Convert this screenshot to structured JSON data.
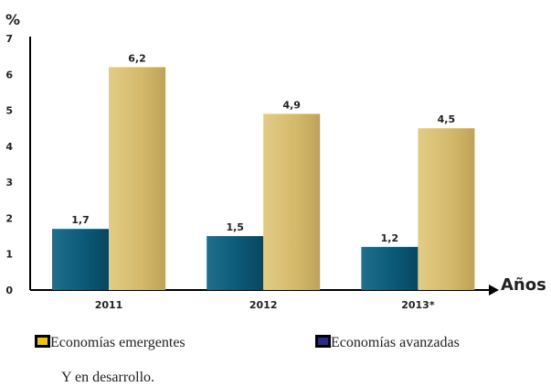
{
  "chart_data": {
    "type": "bar",
    "categories": [
      "2011",
      "2012",
      "2013*"
    ],
    "series": [
      {
        "name": "Economías avanzadas",
        "values": [
          1.7,
          1.5,
          1.2
        ],
        "labels": [
          "1,7",
          "1,5",
          "1,2"
        ]
      },
      {
        "name": "Economías emergentes Y en desarrollo.",
        "values": [
          6.2,
          4.9,
          4.5
        ],
        "labels": [
          "6,2",
          "4,9",
          "4,5"
        ]
      }
    ],
    "ylabel": "%",
    "xlabel": "Años",
    "ylim": [
      0,
      7
    ],
    "yticks": [
      0,
      1,
      2,
      3,
      4,
      5,
      6,
      7
    ],
    "grid": false,
    "legend_position": "bottom"
  },
  "legend": {
    "emerging_line1": "Economías emergentes",
    "emerging_line2": "Y en desarrollo.",
    "advanced": "Economías avanzadas",
    "emerging_swatch_color": "#f5c400",
    "advanced_swatch_color": "#2a2a8a"
  },
  "colors": {
    "teal_bar": "#0b5a78",
    "gold_bar": "#d3b86a"
  }
}
